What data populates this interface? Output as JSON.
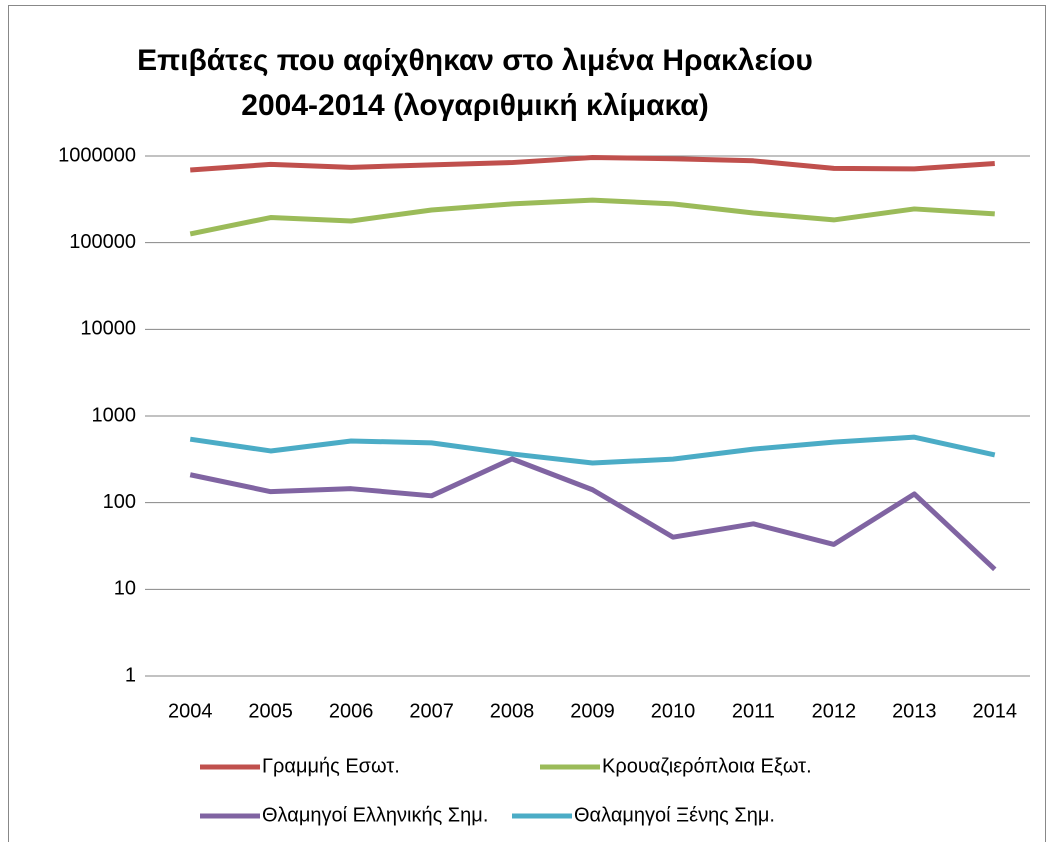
{
  "chart_data": {
    "type": "line",
    "title": [
      "Επιβάτες που αφίχθηκαν στο λιμένα Ηρακλείου",
      "2004-2014 (λογαριθμική κλίμακα)"
    ],
    "categories": [
      "2004",
      "2005",
      "2006",
      "2007",
      "2008",
      "2009",
      "2010",
      "2011",
      "2012",
      "2013",
      "2014"
    ],
    "series": [
      {
        "name": "Γραμμής Εσωτ.",
        "color": "#c0504d",
        "values": [
          690000,
          800000,
          740000,
          790000,
          840000,
          960000,
          930000,
          880000,
          720000,
          710000,
          820000
        ]
      },
      {
        "name": "Κρουαζιερόπλοια Εξωτ.",
        "color": "#9bbb59",
        "values": [
          126000,
          195000,
          178000,
          238000,
          280000,
          310000,
          280000,
          220000,
          183000,
          245000,
          215000
        ]
      },
      {
        "name": "Θλαμηγοί Ελληνικής Σημ.",
        "color": "#8064a2",
        "values": [
          210,
          134,
          145,
          120,
          320,
          141,
          40,
          57,
          33,
          126,
          17
        ]
      },
      {
        "name": "Θαλαμηγοί Ξένης Σημ.",
        "color": "#4bacc6",
        "values": [
          540,
          395,
          515,
          490,
          365,
          287,
          318,
          415,
          500,
          570,
          355
        ]
      }
    ],
    "ylim": [
      1,
      1000000
    ],
    "yticks": [
      1,
      10,
      100,
      1000,
      10000,
      100000,
      1000000
    ],
    "log_scale": true,
    "grid": true,
    "legend": "bottom"
  }
}
